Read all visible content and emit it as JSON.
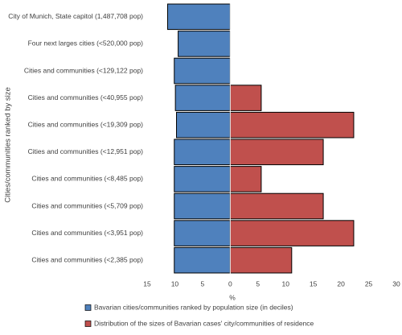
{
  "chart_data": {
    "type": "diverging-bar",
    "y_label": "Cities/communities ranked by size",
    "x_label": "%",
    "categories": [
      "City of Munich, State capitol (1,487,708 pop)",
      "Four next larges cities (<520,000 pop)",
      "Cities and communities (<129,122 pop)",
      "Cities and communities (<40,955 pop)",
      "Cities and communities (<19,309 pop)",
      "Cities and communities (<12,951 pop)",
      "Cities and communities (<8,485 pop)",
      "Cities and communities (<5,709 pop)",
      "Cities and communities (<3,951 pop)",
      "Cities and communities (<2,385 pop)"
    ],
    "series": [
      {
        "name": "Bavarian cities/communities ranked by population size (in deciles)",
        "color": "#4f81bd",
        "values": [
          -11.3,
          -9.4,
          -10.1,
          -9.9,
          -9.7,
          -10.1,
          -10.1,
          -10.1,
          -10.1,
          -10.1
        ]
      },
      {
        "name": "Distribution of the sizes of Bavarian cases' city/communities of residence",
        "color": "#c0504d",
        "values": [
          0,
          0,
          0,
          5.6,
          22.3,
          16.8,
          5.6,
          16.8,
          22.3,
          11.1
        ]
      }
    ],
    "xlim": [
      -15,
      30
    ],
    "xticks": [
      {
        "value": -15,
        "label": "15"
      },
      {
        "value": -10,
        "label": "10"
      },
      {
        "value": -5,
        "label": "5"
      },
      0,
      5,
      10,
      15,
      20,
      25,
      30
    ],
    "legend": "bottom"
  }
}
